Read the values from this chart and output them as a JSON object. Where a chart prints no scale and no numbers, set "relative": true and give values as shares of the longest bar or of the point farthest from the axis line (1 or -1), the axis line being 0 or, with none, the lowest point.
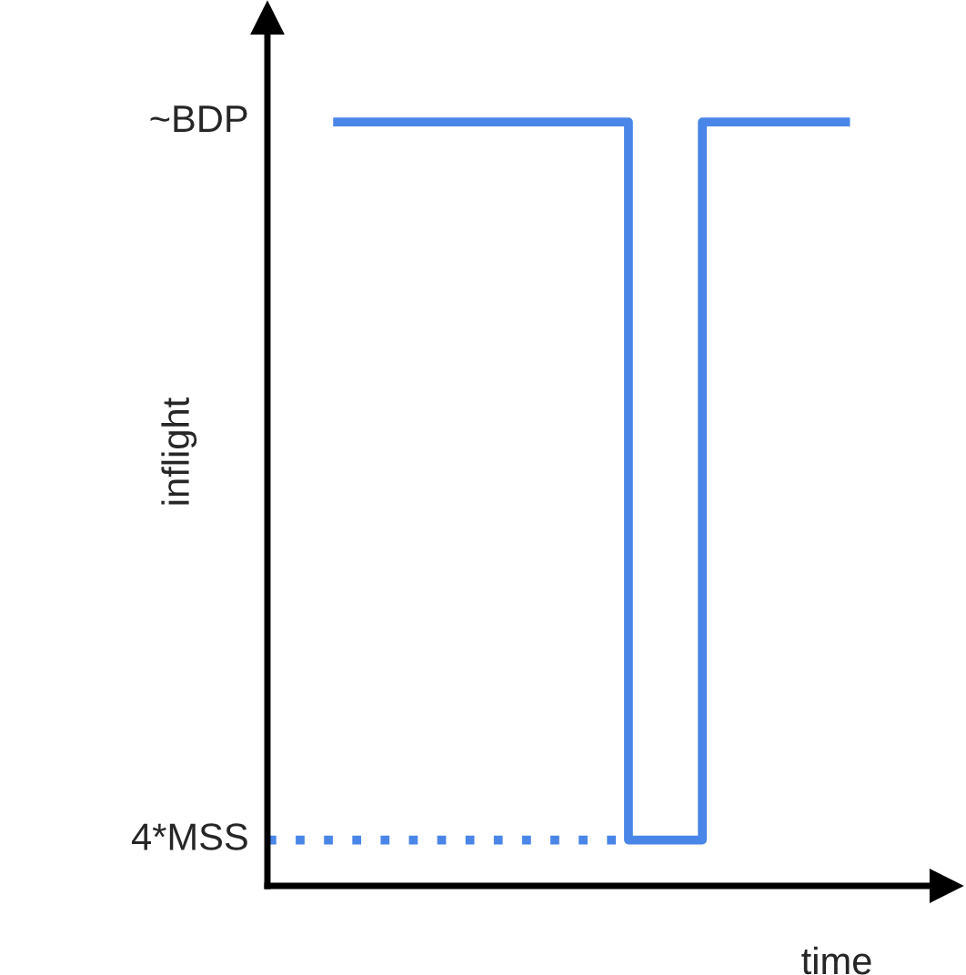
{
  "chart_data": {
    "type": "step",
    "xlabel": "time",
    "ylabel": "inflight",
    "relative": true,
    "categories": [
      null,
      null,
      null,
      null,
      null,
      null,
      null,
      null
    ],
    "series": [
      {
        "color": "#4a86e8",
        "values": [
          1,
          1,
          1,
          1,
          0.06,
          1,
          1,
          1
        ]
      }
    ],
    "ref_lines": [
      {
        "axis": "y",
        "value": 0.06,
        "label": "4*MSS",
        "color": "#4a86e8",
        "line_style": "dotted"
      }
    ],
    "annotations": [
      "~BDP"
    ],
    "grid": false,
    "legend": false,
    "marker": "none",
    "line_style": "solid"
  }
}
